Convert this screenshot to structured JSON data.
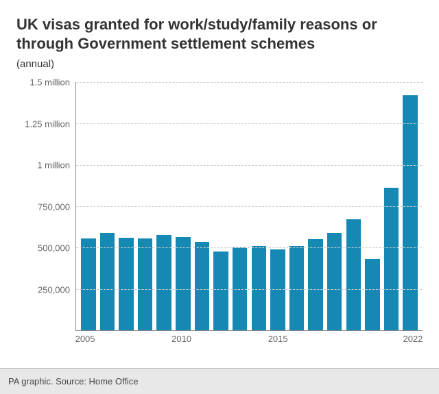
{
  "chart": {
    "type": "bar",
    "title": "UK visas granted for work/study/family reasons or through Government settlement schemes",
    "subtitle": "(annual)",
    "title_color": "#333333",
    "title_fontsize": 22,
    "subtitle_fontsize": 15,
    "background_color": "#ffffff",
    "plot_border_color": "#888888",
    "grid_color": "#cccccc",
    "grid_dash": true,
    "bar_color": "#1589b3",
    "bar_width": 0.78,
    "ylim": [
      0,
      1500000
    ],
    "yticks": [
      {
        "value": 250000,
        "label": "250,000"
      },
      {
        "value": 500000,
        "label": "500,000"
      },
      {
        "value": 750000,
        "label": "750,000"
      },
      {
        "value": 1000000,
        "label": "1 million"
      },
      {
        "value": 1250000,
        "label": "1.25 million"
      },
      {
        "value": 1500000,
        "label": "1.5 million"
      }
    ],
    "ytick_fontsize": 13,
    "ytick_color": "#666666",
    "years": [
      2005,
      2006,
      2007,
      2008,
      2009,
      2010,
      2011,
      2012,
      2013,
      2014,
      2015,
      2016,
      2017,
      2018,
      2019,
      2020,
      2021,
      2022
    ],
    "values": [
      555000,
      590000,
      560000,
      555000,
      575000,
      565000,
      535000,
      475000,
      500000,
      510000,
      490000,
      510000,
      550000,
      590000,
      670000,
      430000,
      860000,
      1420000
    ],
    "xticks": [
      {
        "year": 2005,
        "label": "2005"
      },
      {
        "year": 2010,
        "label": "2010"
      },
      {
        "year": 2015,
        "label": "2015"
      },
      {
        "year": 2022,
        "label": "2022"
      }
    ],
    "xtick_fontsize": 13,
    "xtick_color": "#666666"
  },
  "footer": {
    "text": "PA graphic. Source: Home Office",
    "background_color": "#e8e8e8",
    "border_color": "#bfbfbf",
    "text_color": "#444444",
    "fontsize": 13
  }
}
